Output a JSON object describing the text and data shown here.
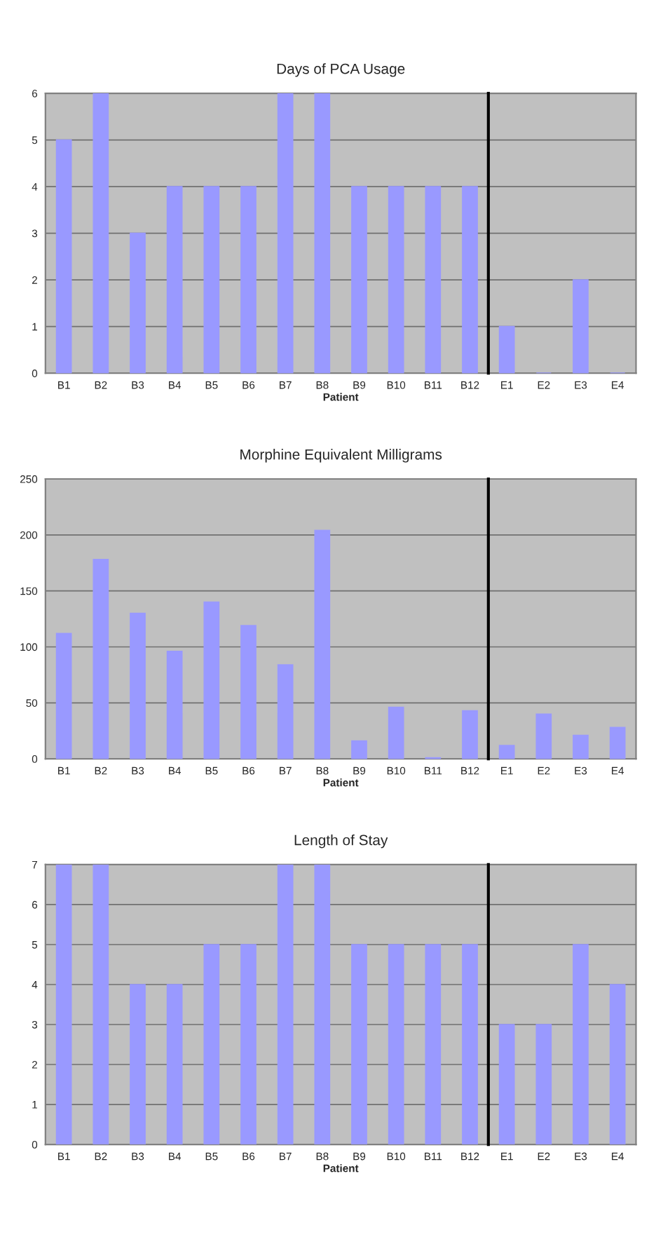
{
  "chart_data": [
    {
      "type": "bar",
      "title": "Days of PCA Usage",
      "xlabel": "Patient",
      "categories": [
        "B1",
        "B2",
        "B3",
        "B4",
        "B5",
        "B6",
        "B7",
        "B8",
        "B9",
        "B10",
        "B11",
        "B12"
      ],
      "series": [
        {
          "color": "#9999ff",
          "values": [
            5,
            6,
            3,
            4,
            4,
            4,
            6,
            6,
            4,
            4,
            4,
            4
          ]
        }
      ],
      "ylim": [
        0,
        6
      ],
      "yticks": [
        0,
        1,
        2,
        3,
        4,
        5,
        6
      ],
      "grid": "y"
    },
    {
      "type": "bar",
      "categories": [
        "E1",
        "E2",
        "E3",
        "E4"
      ],
      "series": [
        {
          "color": "#9999ff",
          "values": [
            1,
            0,
            2,
            0
          ]
        }
      ],
      "ylim": [
        0,
        6
      ],
      "yticks": [
        0,
        1,
        2,
        3,
        4,
        5,
        6
      ],
      "grid": "y",
      "tick_labels": "x"
    },
    {
      "type": "bar",
      "title": "Morphine Equivalent Milligrams",
      "xlabel": "Patient",
      "categories": [
        "B1",
        "B2",
        "B3",
        "B4",
        "B5",
        "B6",
        "B7",
        "B8",
        "B9",
        "B10",
        "B11",
        "B12"
      ],
      "series": [
        {
          "color": "#9999ff",
          "values": [
            112,
            178,
            130,
            96,
            140,
            119,
            84,
            204,
            16,
            46,
            1,
            43
          ]
        }
      ],
      "ylim": [
        0,
        250
      ],
      "yticks": [
        0,
        50,
        100,
        150,
        200,
        250
      ],
      "grid": "y"
    },
    {
      "type": "bar",
      "categories": [
        "E1",
        "E2",
        "E3",
        "E4"
      ],
      "series": [
        {
          "color": "#9999ff",
          "values": [
            12,
            40,
            21,
            28
          ]
        }
      ],
      "ylim": [
        0,
        250
      ],
      "yticks": [
        0,
        50,
        100,
        150,
        200,
        250
      ],
      "grid": "y",
      "tick_labels": "x"
    },
    {
      "type": "bar",
      "title": "Length of Stay",
      "xlabel": "Patient",
      "categories": [
        "B1",
        "B2",
        "B3",
        "B4",
        "B5",
        "B6",
        "B7",
        "B8",
        "B9",
        "B10",
        "B11",
        "B12"
      ],
      "series": [
        {
          "color": "#9999ff",
          "values": [
            7,
            7,
            4,
            4,
            5,
            5,
            7,
            7,
            5,
            5,
            5,
            5
          ]
        }
      ],
      "ylim": [
        0,
        7
      ],
      "yticks": [
        0,
        1,
        2,
        3,
        4,
        5,
        6,
        7
      ],
      "grid": "y"
    },
    {
      "type": "bar",
      "categories": [
        "E1",
        "E2",
        "E3",
        "E4"
      ],
      "series": [
        {
          "color": "#9999ff",
          "values": [
            3,
            3,
            5,
            4
          ]
        }
      ],
      "ylim": [
        0,
        7
      ],
      "yticks": [
        0,
        1,
        2,
        3,
        4,
        5,
        6,
        7
      ],
      "grid": "y",
      "tick_labels": "x"
    }
  ]
}
